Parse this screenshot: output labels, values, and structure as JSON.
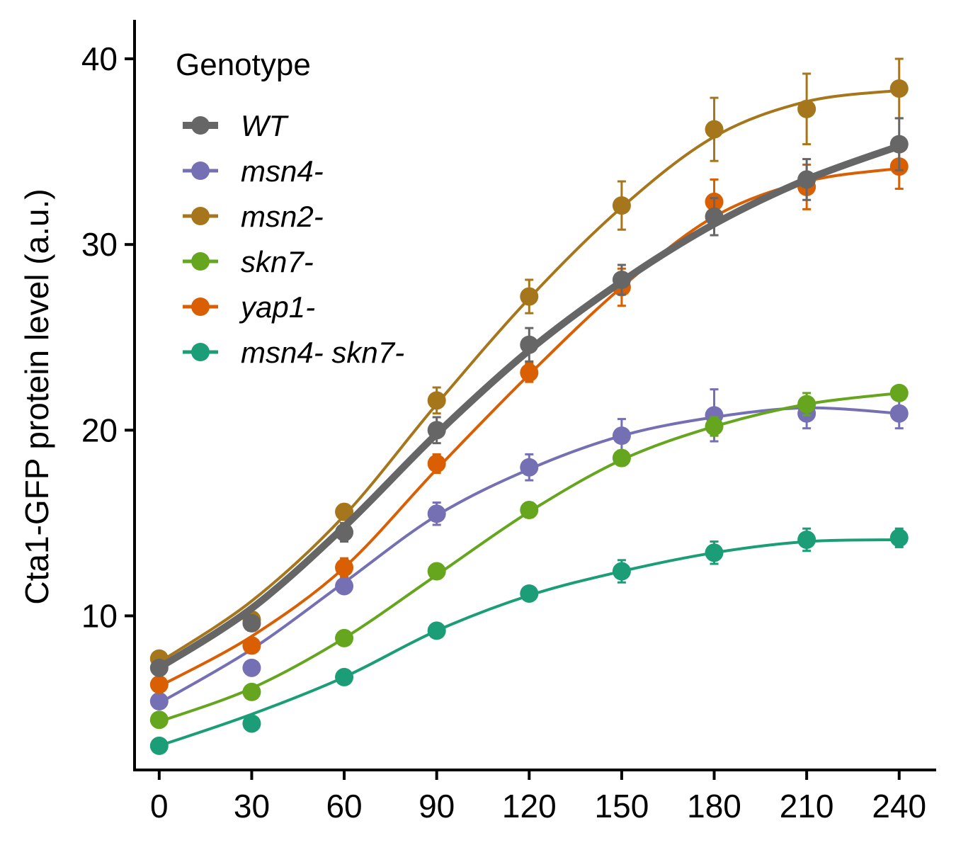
{
  "chart_data": {
    "type": "line",
    "title": "",
    "xlabel": "",
    "ylabel": "Cta1-GFP protein level (a.u.)",
    "x": [
      0,
      30,
      60,
      90,
      120,
      150,
      180,
      210,
      240
    ],
    "x_ticks": [
      "0",
      "30",
      "60",
      "90",
      "120",
      "150",
      "180",
      "210",
      "240"
    ],
    "y_ticks": [
      "10",
      "20",
      "30",
      "40"
    ],
    "xlim": [
      -8,
      252
    ],
    "ylim": [
      1.7,
      42.1
    ],
    "grid": false,
    "legend": {
      "title": "Genotype",
      "position": "top-left"
    },
    "series": [
      {
        "name": "WT",
        "color": "#666666",
        "thick": true,
        "values": [
          7.2,
          9.6,
          14.5,
          20.0,
          24.6,
          28.1,
          31.5,
          33.5,
          35.4
        ],
        "errors": [
          0.3,
          0.4,
          0.5,
          0.7,
          0.9,
          0.8,
          1.0,
          1.1,
          1.4
        ],
        "fit": [
          7.2,
          10.4,
          14.8,
          19.8,
          24.3,
          28.0,
          31.1,
          33.5,
          35.3
        ]
      },
      {
        "name": "msn4-",
        "color": "#7570b3",
        "thick": false,
        "values": [
          5.4,
          7.2,
          11.6,
          15.5,
          18.0,
          19.7,
          20.8,
          20.9,
          20.9
        ],
        "errors": [
          0.2,
          0.3,
          0.3,
          0.6,
          0.7,
          0.9,
          1.4,
          0.8,
          0.8
        ],
        "fit": [
          5.3,
          8.2,
          11.8,
          15.4,
          17.9,
          19.7,
          20.7,
          21.2,
          20.9
        ]
      },
      {
        "name": "msn2-",
        "color": "#a6761d",
        "thick": false,
        "values": [
          7.7,
          9.8,
          15.6,
          21.6,
          27.2,
          32.1,
          36.2,
          37.3,
          38.4
        ],
        "errors": [
          0.3,
          0.4,
          0.4,
          0.7,
          0.9,
          1.3,
          1.7,
          1.9,
          1.6
        ],
        "fit": [
          7.5,
          10.8,
          15.4,
          21.4,
          27.1,
          32.0,
          35.8,
          37.7,
          38.3
        ]
      },
      {
        "name": "skn7-",
        "color": "#66a61e",
        "thick": false,
        "values": [
          4.4,
          5.9,
          8.8,
          12.4,
          15.7,
          18.5,
          20.2,
          21.4,
          22.0
        ],
        "errors": [
          0.2,
          0.2,
          0.3,
          0.3,
          0.4,
          0.4,
          0.5,
          0.6,
          0.3
        ],
        "fit": [
          4.3,
          6.1,
          8.8,
          12.2,
          15.6,
          18.4,
          20.2,
          21.4,
          22.0
        ]
      },
      {
        "name": "yap1-",
        "color": "#d95f02",
        "thick": false,
        "values": [
          6.3,
          8.4,
          12.6,
          18.2,
          23.1,
          27.7,
          32.3,
          33.1,
          34.2
        ],
        "errors": [
          0.3,
          0.4,
          0.5,
          0.5,
          0.5,
          1.0,
          1.2,
          1.2,
          1.2
        ],
        "fit": [
          6.2,
          8.9,
          12.6,
          17.9,
          23.0,
          27.7,
          31.5,
          33.4,
          34.1
        ]
      },
      {
        "name": "msn4- skn7-",
        "color": "#1b9e77",
        "thick": false,
        "values": [
          3.0,
          4.2,
          6.7,
          9.2,
          11.2,
          12.4,
          13.4,
          14.1,
          14.2
        ],
        "errors": [
          0.2,
          0.2,
          0.3,
          0.3,
          0.3,
          0.6,
          0.6,
          0.6,
          0.5
        ],
        "fit": [
          3.0,
          4.7,
          6.7,
          9.2,
          11.1,
          12.4,
          13.4,
          14.0,
          14.1
        ]
      }
    ]
  }
}
